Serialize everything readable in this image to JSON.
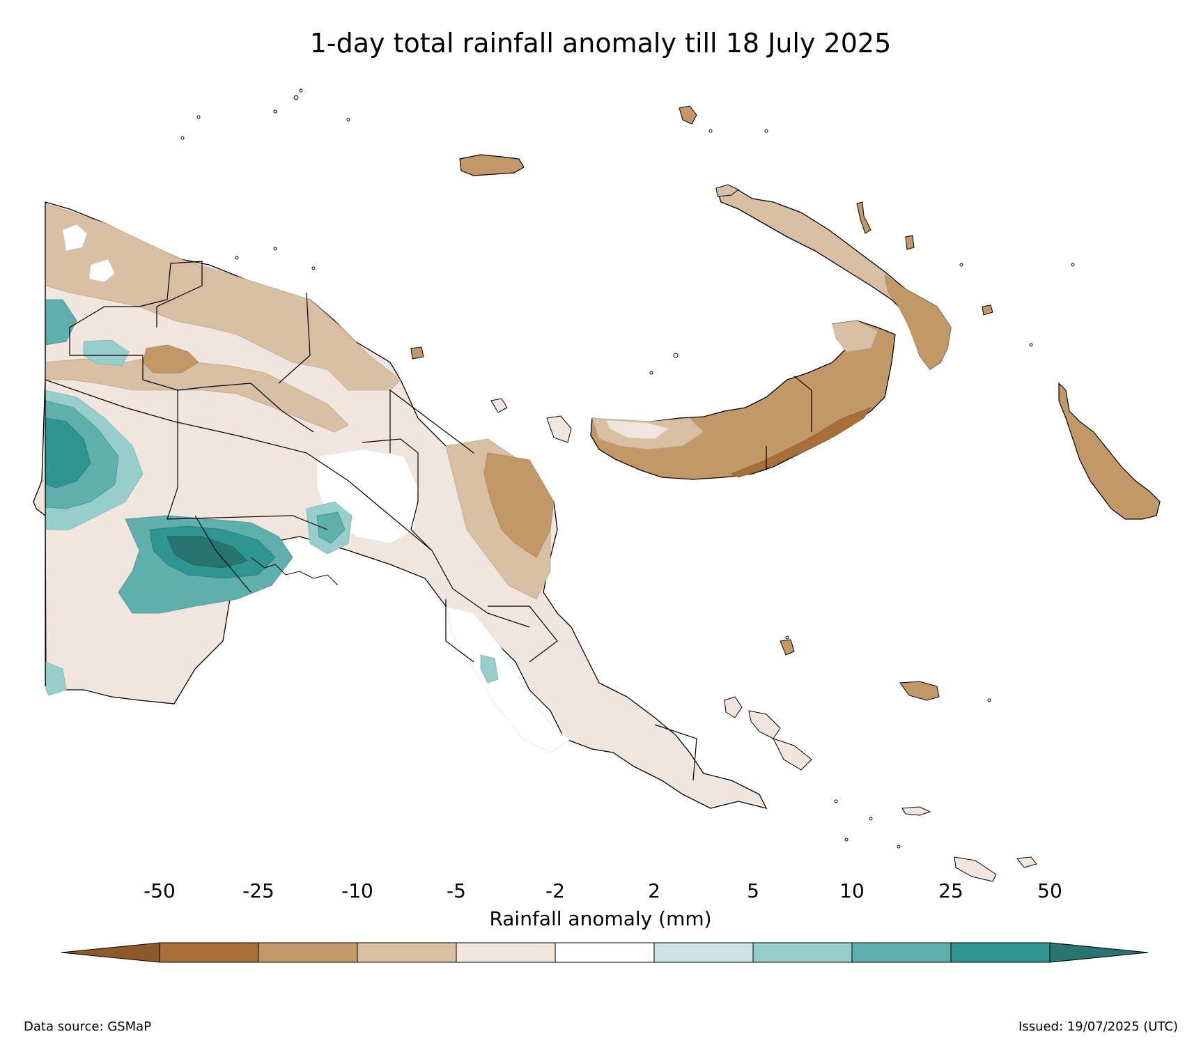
{
  "title": "1-day total rainfall anomaly till 18 July 2025",
  "colorbar": {
    "label": "Rainfall anomaly (mm)",
    "ticks": [
      "-50",
      "-25",
      "-10",
      "-5",
      "-2",
      "2",
      "5",
      "10",
      "25",
      "50"
    ],
    "colors": [
      "#8c5a2a",
      "#a86f38",
      "#c39869",
      "#d8bfa4",
      "#f0e6dd",
      "#ffffff",
      "#cce5e4",
      "#97cdcb",
      "#5fb0ad",
      "#2e9590",
      "#267570"
    ]
  },
  "footer": {
    "source": "Data source: GSMaP",
    "issued": "Issued: 19/07/2025 (UTC)"
  }
}
